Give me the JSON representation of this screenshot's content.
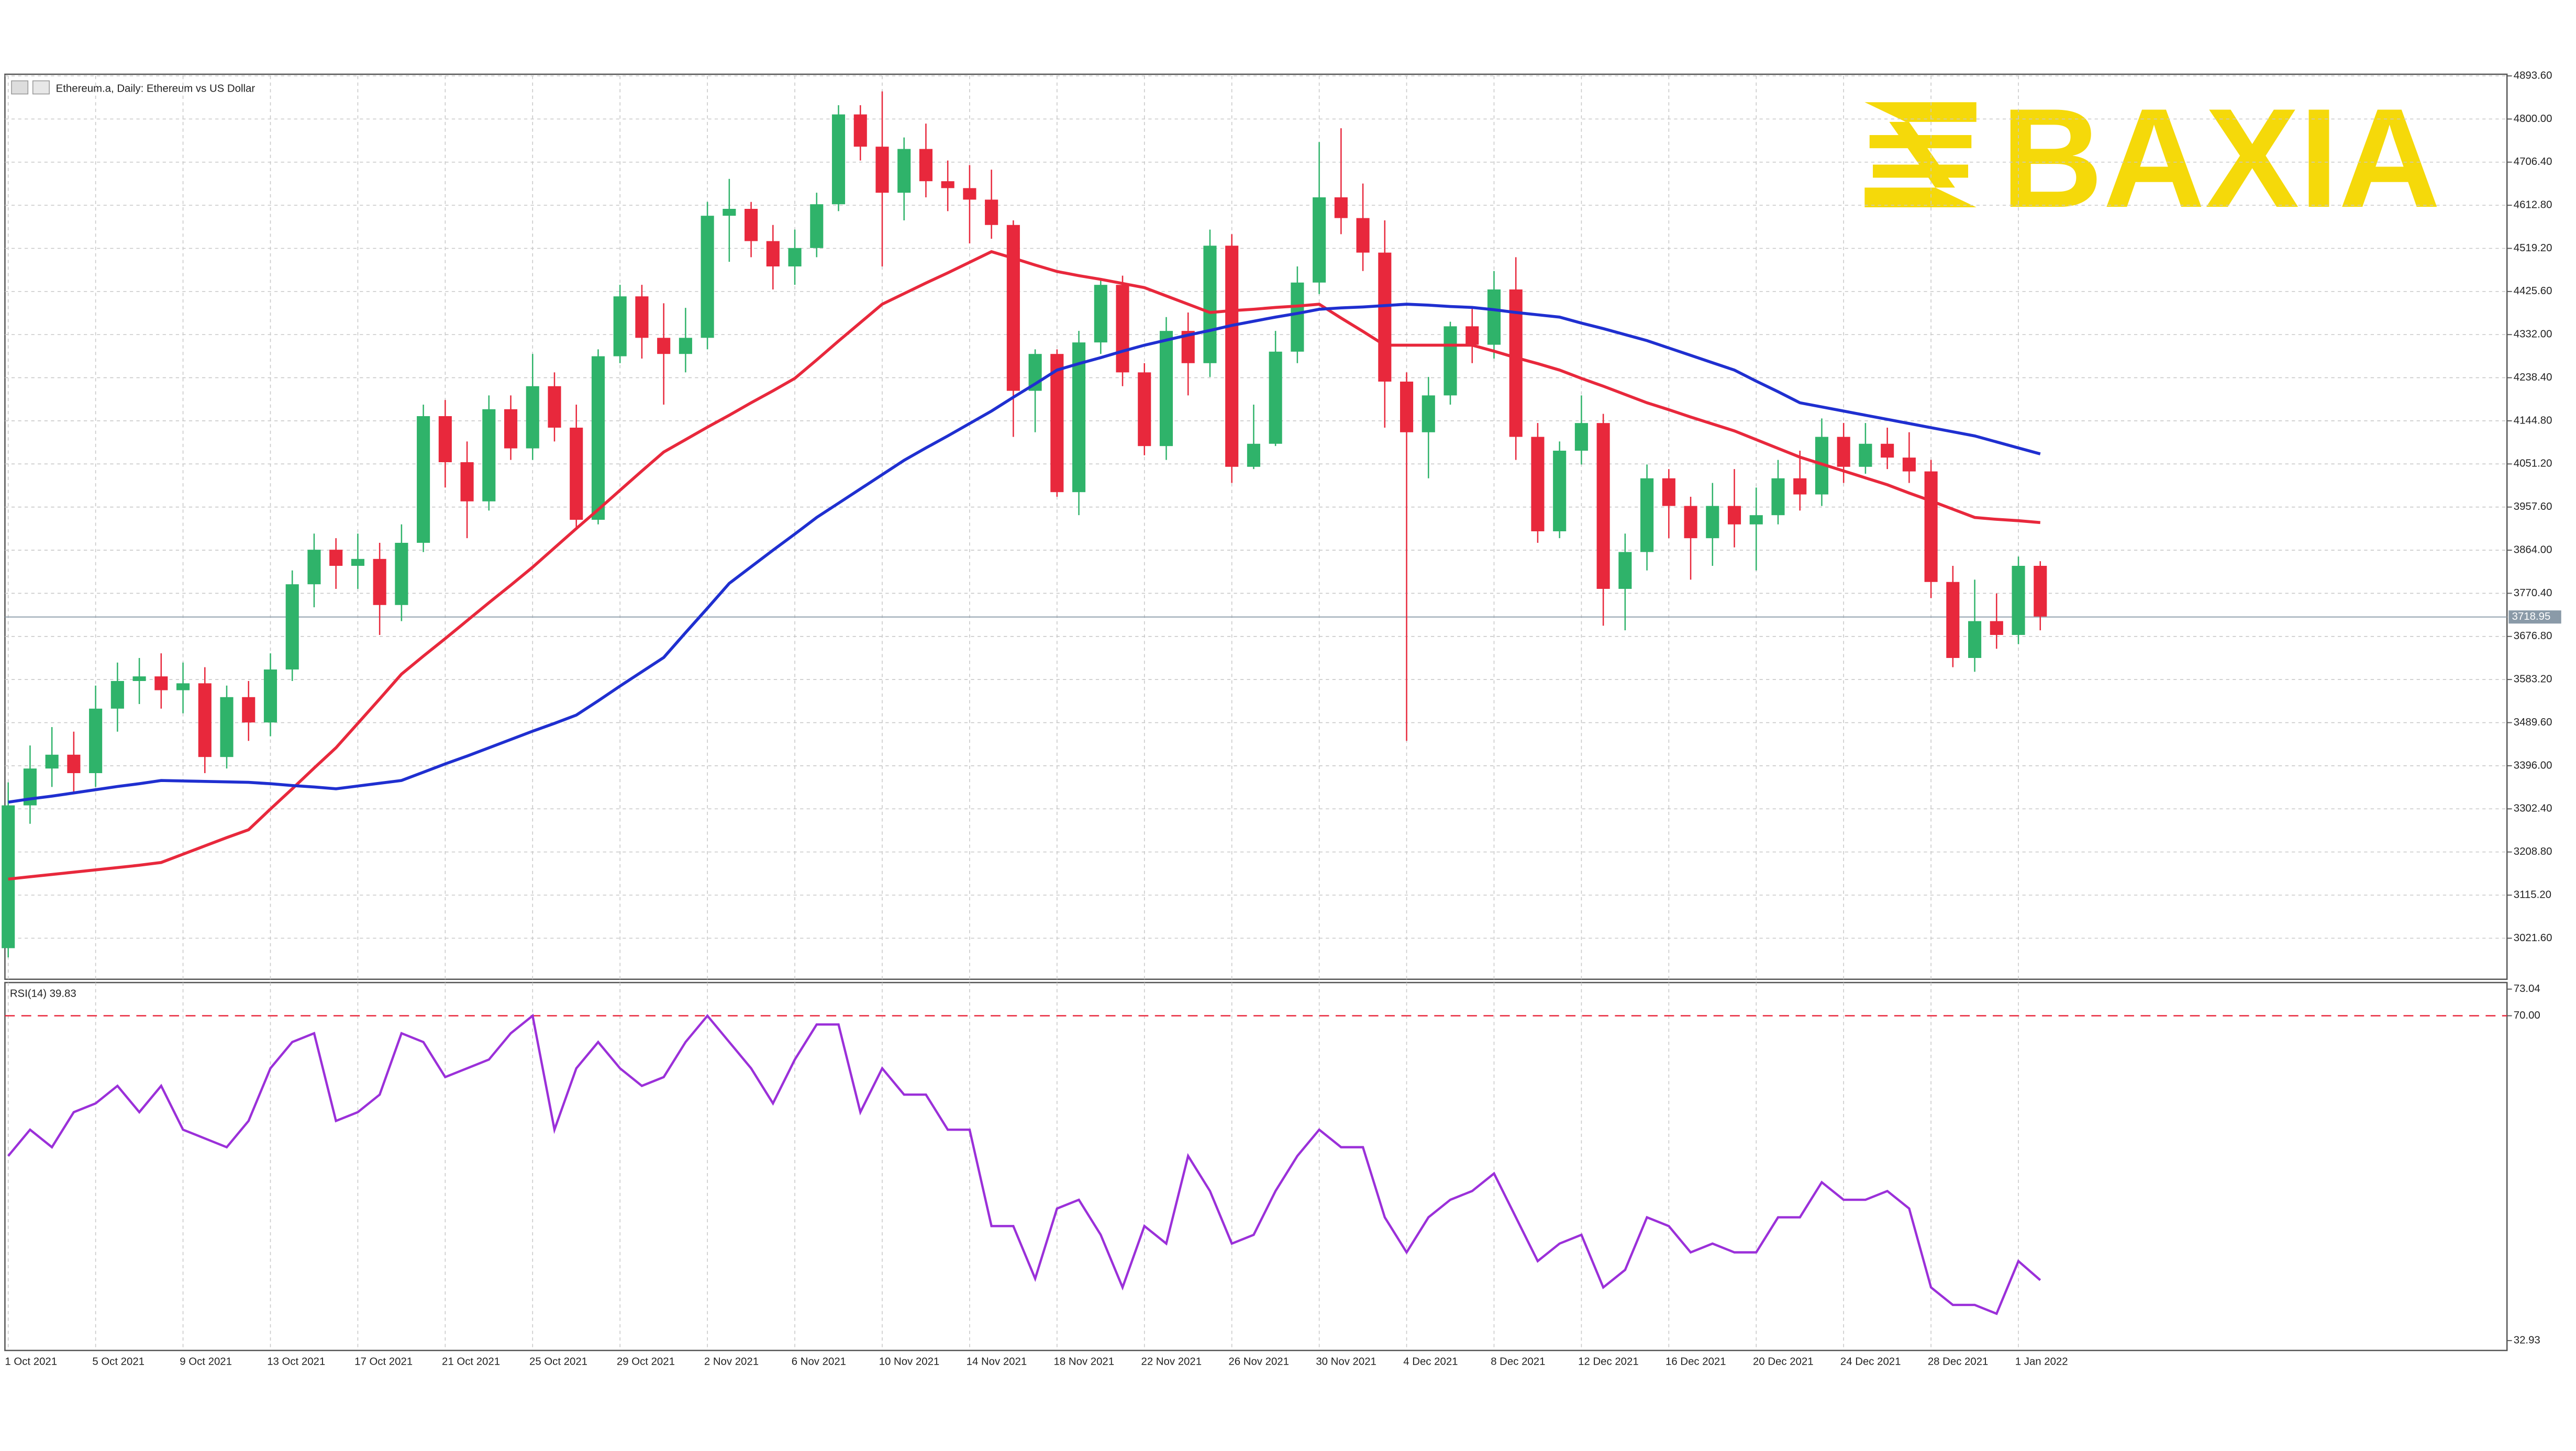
{
  "chart_data": {
    "type": "candlestick",
    "title": "Ethereum.a, Daily:  Ethereum vs US Dollar",
    "logo": "BAXIA",
    "categories": [
      "1 Oct 2021",
      null,
      null,
      null,
      "5 Oct 2021",
      null,
      null,
      null,
      "9 Oct 2021",
      null,
      null,
      null,
      "13 Oct 2021",
      null,
      null,
      null,
      "17 Oct 2021",
      null,
      null,
      null,
      "21 Oct 2021",
      null,
      null,
      null,
      "25 Oct 2021",
      null,
      null,
      null,
      "29 Oct 2021",
      null,
      null,
      null,
      "2 Nov 2021",
      null,
      null,
      null,
      "6 Nov 2021",
      null,
      null,
      null,
      "10 Nov 2021",
      null,
      null,
      null,
      "14 Nov 2021",
      null,
      null,
      null,
      "18 Nov 2021",
      null,
      null,
      null,
      "22 Nov 2021",
      null,
      null,
      null,
      "26 Nov 2021",
      null,
      null,
      null,
      "30 Nov 2021",
      null,
      null,
      null,
      "4 Dec 2021",
      null,
      null,
      null,
      "8 Dec 2021",
      null,
      null,
      null,
      "12 Dec 2021",
      null,
      null,
      null,
      "16 Dec 2021",
      null,
      null,
      null,
      "20 Dec 2021",
      null,
      null,
      null,
      "24 Dec 2021",
      null,
      null,
      null,
      "28 Dec 2021",
      null,
      null,
      null,
      "1 Jan 2022",
      null
    ],
    "open": [
      3000,
      3310,
      3390,
      3420,
      3380,
      3520,
      3580,
      3590,
      3560,
      3575,
      3415,
      3545,
      3490,
      3605,
      3790,
      3865,
      3830,
      3845,
      3745,
      3880,
      4155,
      4055,
      3970,
      4170,
      4085,
      4220,
      4130,
      3930,
      4285,
      4415,
      4325,
      4290,
      4325,
      4590,
      4605,
      4535,
      4480,
      4520,
      4615,
      4810,
      4740,
      4640,
      4735,
      4665,
      4650,
      4625,
      4570,
      4210,
      4290,
      3990,
      4315,
      4440,
      4250,
      4090,
      4340,
      4270,
      4525,
      4045,
      4095,
      4295,
      4445,
      4630,
      4585,
      4510,
      4230,
      4120,
      4200,
      4350,
      4310,
      4430,
      4110,
      3905,
      4080,
      4140,
      3780,
      3860,
      4020,
      3960,
      3890,
      3960,
      3920,
      3940,
      4020,
      3985,
      4110,
      4045,
      4095,
      4065,
      4035,
      3795,
      3630,
      3710,
      3680,
      3830
    ],
    "high": [
      3360,
      3440,
      3480,
      3470,
      3570,
      3620,
      3630,
      3640,
      3620,
      3610,
      3570,
      3580,
      3640,
      3820,
      3900,
      3890,
      3900,
      3880,
      3920,
      4180,
      4190,
      4100,
      4200,
      4200,
      4290,
      4250,
      4180,
      4300,
      4440,
      4440,
      4400,
      4390,
      4620,
      4670,
      4620,
      4570,
      4560,
      4640,
      4830,
      4830,
      4860,
      4760,
      4790,
      4710,
      4700,
      4690,
      4580,
      4300,
      4300,
      4340,
      4450,
      4460,
      4270,
      4370,
      4380,
      4560,
      4550,
      4180,
      4340,
      4480,
      4750,
      4780,
      4660,
      4580,
      4250,
      4240,
      4360,
      4390,
      4470,
      4500,
      4140,
      4100,
      4200,
      4160,
      3900,
      4050,
      4040,
      3980,
      4010,
      4040,
      4000,
      4060,
      4080,
      4150,
      4140,
      4140,
      4130,
      4120,
      4060,
      3830,
      3800,
      3770,
      3850,
      3840
    ],
    "low": [
      2980,
      3270,
      3350,
      3340,
      3350,
      3470,
      3530,
      3520,
      3510,
      3380,
      3390,
      3450,
      3460,
      3580,
      3740,
      3780,
      3780,
      3680,
      3710,
      3860,
      4000,
      3890,
      3950,
      4060,
      4060,
      4100,
      3910,
      3920,
      4270,
      4280,
      4180,
      4250,
      4300,
      4490,
      4500,
      4430,
      4440,
      4500,
      4600,
      4710,
      4480,
      4580,
      4630,
      4600,
      4530,
      4540,
      4110,
      4120,
      3980,
      3940,
      4290,
      4220,
      4070,
      4060,
      4200,
      4240,
      4010,
      4040,
      4090,
      4270,
      4420,
      4550,
      4470,
      4130,
      3450,
      4020,
      4180,
      4270,
      4280,
      4060,
      3880,
      3890,
      4050,
      3700,
      3690,
      3820,
      3890,
      3800,
      3830,
      3870,
      3820,
      3920,
      3950,
      3960,
      4010,
      4030,
      4040,
      4010,
      3760,
      3610,
      3600,
      3650,
      3660,
      3690
    ],
    "close": [
      3310,
      3390,
      3420,
      3380,
      3520,
      3580,
      3590,
      3560,
      3575,
      3415,
      3545,
      3490,
      3605,
      3790,
      3865,
      3830,
      3845,
      3745,
      3880,
      4155,
      4055,
      3970,
      4170,
      4085,
      4220,
      4130,
      3930,
      4285,
      4415,
      4325,
      4290,
      4325,
      4590,
      4605,
      4535,
      4480,
      4520,
      4615,
      4810,
      4740,
      4640,
      4735,
      4665,
      4650,
      4625,
      4570,
      4210,
      4290,
      3990,
      4315,
      4440,
      4250,
      4090,
      4340,
      4270,
      4525,
      4045,
      4095,
      4295,
      4445,
      4630,
      4585,
      4510,
      4230,
      4120,
      4200,
      4350,
      4310,
      4430,
      4110,
      3905,
      4080,
      4140,
      3780,
      3860,
      4020,
      3960,
      3890,
      3960,
      3920,
      3940,
      4020,
      3985,
      4110,
      4045,
      4095,
      4065,
      4035,
      3795,
      3630,
      3710,
      3680,
      3830,
      3720
    ],
    "up_color": "#2fb36a",
    "down_color": "#e8283c",
    "series": [
      {
        "color": "#e8283c",
        "values": [
          3150,
          3155,
          3160,
          3165,
          3170,
          3175,
          3180,
          3186,
          3204,
          3222,
          3240,
          3257,
          3302,
          3346,
          3391,
          3435,
          3488,
          3541,
          3595,
          3634,
          3672,
          3711,
          3750,
          3788,
          3827,
          3869,
          3911,
          3952,
          3994,
          4036,
          4077,
          4104,
          4131,
          4157,
          4184,
          4210,
          4237,
          4277,
          4318,
          4358,
          4398,
          4421,
          4444,
          4466,
          4489,
          4512,
          4498,
          4483,
          4469,
          4460,
          4452,
          4443,
          4434,
          4416,
          4398,
          4380,
          4384,
          4387,
          4391,
          4394,
          4398,
          4368,
          4339,
          4309,
          4309,
          4309,
          4309,
          4309,
          4296,
          4282,
          4269,
          4255,
          4237,
          4220,
          4202,
          4184,
          4169,
          4153,
          4138,
          4123,
          4104,
          4085,
          4066,
          4051,
          4036,
          4021,
          4006,
          3988,
          3971,
          3953,
          3935,
          3931,
          3928,
          3924
        ]
      },
      {
        "color": "#1f2fd0",
        "values": [
          3317,
          3324,
          3330,
          3337,
          3344,
          3351,
          3357,
          3364,
          3363,
          3362,
          3361,
          3360,
          3357,
          3353,
          3350,
          3346,
          3352,
          3358,
          3364,
          3382,
          3400,
          3417,
          3435,
          3453,
          3471,
          3488,
          3506,
          3537,
          3569,
          3600,
          3631,
          3685,
          3738,
          3792,
          3828,
          3864,
          3899,
          3935,
          3966,
          3997,
          4028,
          4059,
          4086,
          4112,
          4139,
          4166,
          4196,
          4225,
          4255,
          4269,
          4282,
          4296,
          4309,
          4320,
          4331,
          4341,
          4352,
          4361,
          4370,
          4378,
          4387,
          4390,
          4392,
          4395,
          4398,
          4396,
          4393,
          4391,
          4386,
          4380,
          4375,
          4370,
          4357,
          4345,
          4332,
          4319,
          4303,
          4287,
          4271,
          4255,
          4231,
          4208,
          4184,
          4175,
          4166,
          4157,
          4148,
          4139,
          4130,
          4121,
          4112,
          4099,
          4086,
          4073
        ]
      }
    ],
    "last_price": 3718.95,
    "ylim": [
      2932.5,
      4893.6
    ],
    "yticks": [
      {
        "value": 4893.6,
        "label": "4893.60"
      },
      {
        "value": 4800,
        "label": "4800.00"
      },
      {
        "value": 4706.4,
        "label": "4706.40"
      },
      {
        "value": 4612.8,
        "label": "4612.80"
      },
      {
        "value": 4519.2,
        "label": "4519.20"
      },
      {
        "value": 4425.6,
        "label": "4425.60"
      },
      {
        "value": 4332,
        "label": "4332.00"
      },
      {
        "value": 4238.4,
        "label": "4238.40"
      },
      {
        "value": 4144.8,
        "label": "4144.80"
      },
      {
        "value": 4051.2,
        "label": "4051.20"
      },
      {
        "value": 3957.6,
        "label": "3957.60"
      },
      {
        "value": 3864,
        "label": "3864.00"
      },
      {
        "value": 3770.4,
        "label": "3770.40"
      },
      {
        "value": 3676.8,
        "label": "3676.80"
      },
      {
        "value": 3583.2,
        "label": "3583.20"
      },
      {
        "value": 3489.6,
        "label": "3489.60"
      },
      {
        "value": 3396,
        "label": "3396.00"
      },
      {
        "value": 3302.4,
        "label": "3302.40"
      },
      {
        "value": 3208.8,
        "label": "3208.80"
      },
      {
        "value": 3115.2,
        "label": "3115.20"
      },
      {
        "value": 3021.6,
        "label": "3021.60"
      }
    ],
    "grid": true,
    "rsi": {
      "label": "RSI(14) 39.83",
      "color": "#9b30d9",
      "level_color": "#e8283c",
      "level": 70,
      "values": [
        54,
        57,
        55,
        59,
        60,
        62,
        59,
        62,
        57,
        56,
        55,
        58,
        64,
        67,
        68,
        58,
        59,
        61,
        68,
        67,
        63,
        64,
        65,
        68,
        70,
        57,
        64,
        67,
        64,
        62,
        63,
        67,
        70,
        67,
        64,
        60,
        65,
        69,
        69,
        59,
        64,
        61,
        61,
        57,
        57,
        46,
        46,
        40,
        48,
        49,
        45,
        39,
        46,
        44,
        54,
        50,
        44,
        45,
        50,
        54,
        57,
        55,
        55,
        47,
        43,
        47,
        49,
        50,
        52,
        47,
        42,
        44,
        45,
        39,
        41,
        47,
        46,
        43,
        44,
        43,
        43,
        47,
        47,
        51,
        49,
        49,
        50,
        48,
        39,
        37,
        37,
        36,
        42,
        39.83
      ],
      "ylim": [
        32.93,
        73.04
      ],
      "yticks": [
        73.04,
        {
          "value": 70,
          "label": "70.00"
        },
        32.93
      ]
    }
  }
}
